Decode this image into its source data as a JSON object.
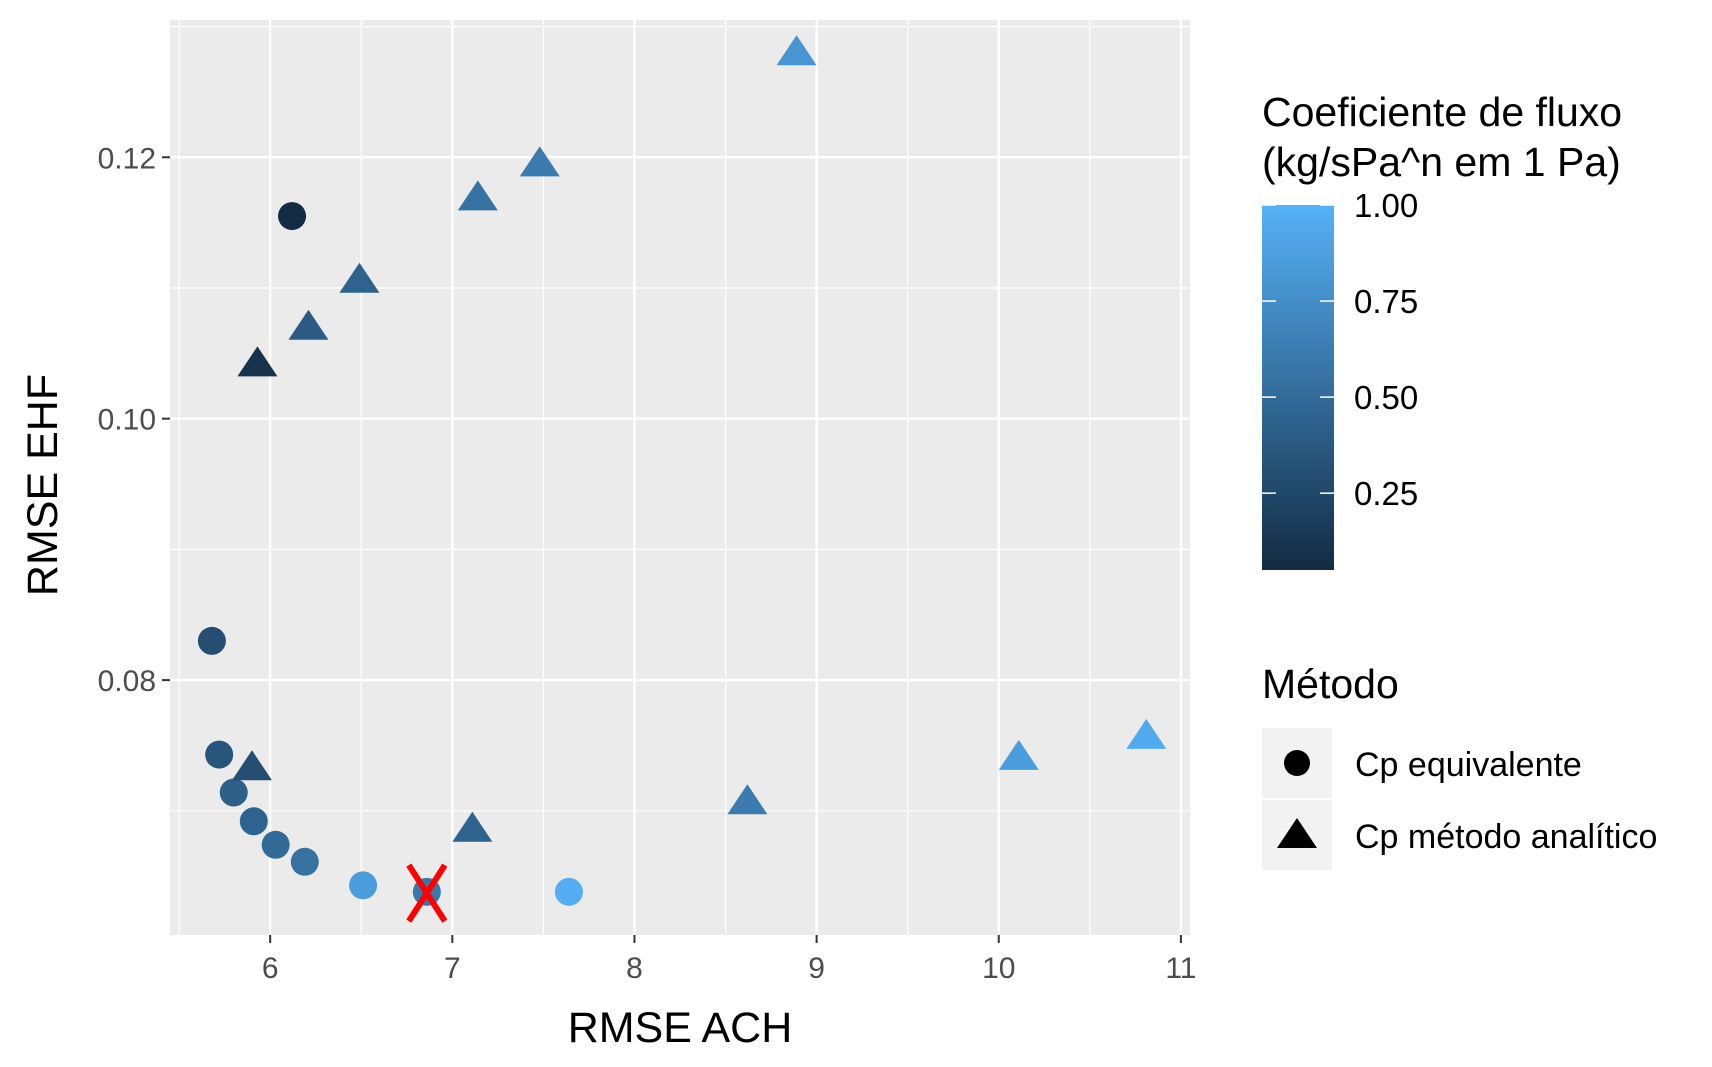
{
  "chart_data": {
    "type": "scatter",
    "title": "",
    "xlabel": "RMSE ACH",
    "ylabel": "RMSE EHF",
    "xlim": [
      5.45,
      11.05
    ],
    "ylim": [
      0.0605,
      0.1305
    ],
    "x_ticks": [
      6,
      7,
      8,
      9,
      10,
      11
    ],
    "y_ticks": [
      0.08,
      0.1,
      0.12
    ],
    "x_tick_labels": [
      "6",
      "7",
      "8",
      "9",
      "10",
      "11"
    ],
    "y_tick_labels": [
      "0.08",
      "0.10",
      "0.12"
    ],
    "grid": true,
    "panel_background": "#EBEBEB",
    "legend_position": "right",
    "color_legend": {
      "title_lines": [
        "Coeficiente de fluxo",
        "(kg/sPa^n em 1 Pa)"
      ],
      "range": [
        0.05,
        1.0
      ],
      "breaks": [
        0.25,
        0.5,
        0.75,
        1.0
      ],
      "break_labels": [
        "0.25",
        "0.50",
        "0.75",
        "1.00"
      ],
      "low_color": "#132B43",
      "high_color": "#56B1F7"
    },
    "shape_legend": {
      "title": "Método",
      "entries": [
        {
          "label": "Cp equivalente",
          "shape": "circle"
        },
        {
          "label": "Cp método analítico",
          "shape": "triangle"
        }
      ]
    },
    "series": [
      {
        "name": "Cp equivalente",
        "shape": "circle",
        "points": [
          {
            "x": 6.12,
            "y": 0.1155,
            "c": 0.05
          },
          {
            "x": 5.68,
            "y": 0.083,
            "c": 0.3
          },
          {
            "x": 5.72,
            "y": 0.0743,
            "c": 0.35
          },
          {
            "x": 5.8,
            "y": 0.0714,
            "c": 0.42
          },
          {
            "x": 5.91,
            "y": 0.0692,
            "c": 0.45
          },
          {
            "x": 6.03,
            "y": 0.0674,
            "c": 0.5
          },
          {
            "x": 6.19,
            "y": 0.0661,
            "c": 0.55
          },
          {
            "x": 6.51,
            "y": 0.0643,
            "c": 0.85
          },
          {
            "x": 6.86,
            "y": 0.0638,
            "c": 0.6
          },
          {
            "x": 7.64,
            "y": 0.0638,
            "c": 0.98
          }
        ]
      },
      {
        "name": "Cp método analítico",
        "shape": "triangle",
        "points": [
          {
            "x": 8.89,
            "y": 0.1278,
            "c": 0.8
          },
          {
            "x": 7.48,
            "y": 0.1193,
            "c": 0.62
          },
          {
            "x": 7.14,
            "y": 0.1167,
            "c": 0.55
          },
          {
            "x": 6.49,
            "y": 0.1104,
            "c": 0.45
          },
          {
            "x": 6.21,
            "y": 0.1068,
            "c": 0.4
          },
          {
            "x": 5.93,
            "y": 0.104,
            "c": 0.1
          },
          {
            "x": 5.9,
            "y": 0.0731,
            "c": 0.3
          },
          {
            "x": 7.11,
            "y": 0.0684,
            "c": 0.45
          },
          {
            "x": 8.62,
            "y": 0.0705,
            "c": 0.62
          },
          {
            "x": 10.11,
            "y": 0.0739,
            "c": 0.85
          },
          {
            "x": 10.81,
            "y": 0.0755,
            "c": 0.95
          }
        ]
      }
    ],
    "annotations": [
      {
        "type": "marker",
        "symbol": "X",
        "x": 6.86,
        "y": 0.0637,
        "color": "#FF0000"
      }
    ]
  }
}
